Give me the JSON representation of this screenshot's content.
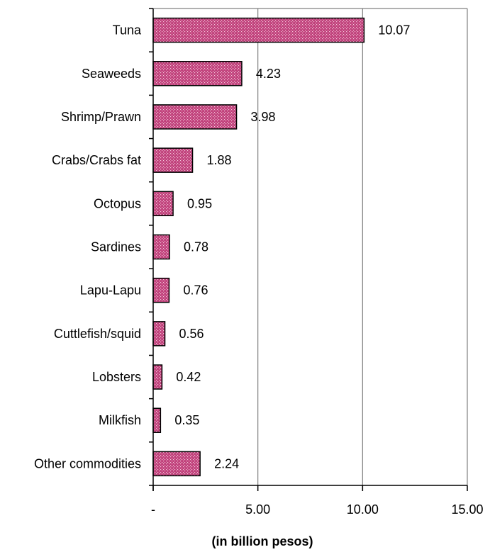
{
  "chart_data": {
    "type": "bar",
    "orientation": "horizontal",
    "categories": [
      "Tuna",
      "Seaweeds",
      "Shrimp/Prawn",
      "Crabs/Crabs fat",
      "Octopus",
      "Sardines",
      "Lapu-Lapu",
      "Cuttlefish/squid",
      "Lobsters",
      "Milkfish",
      "Other commodities"
    ],
    "values": [
      10.07,
      4.23,
      3.98,
      1.88,
      0.95,
      0.78,
      0.76,
      0.56,
      0.42,
      0.35,
      2.24
    ],
    "value_labels": [
      "10.07",
      "4.23",
      "3.98",
      "1.88",
      "0.95",
      "0.78",
      "0.76",
      "0.56",
      "0.42",
      "0.35",
      "2.24"
    ],
    "title": "",
    "xlabel": "(in billion pesos)",
    "ylabel": "",
    "xlim": [
      0,
      15
    ],
    "xticks": [
      0,
      5,
      10,
      15
    ],
    "xtick_labels": [
      "-",
      "5.00",
      "10.00",
      "15.00"
    ],
    "grid": "vertical",
    "legend": "none",
    "bar_fill_color": "#c0407a",
    "bar_dot_color": "#f4c8dc",
    "bar_edge_color": "#000000"
  }
}
